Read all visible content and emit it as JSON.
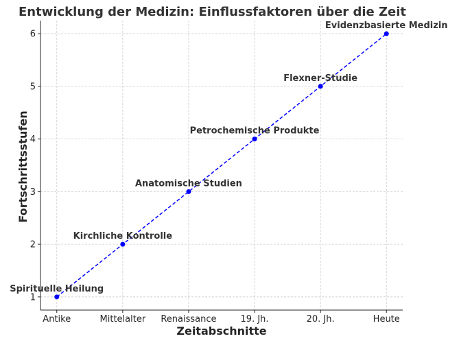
{
  "chart_data": {
    "type": "line",
    "title": "Entwicklung der Medizin: Einflussfaktoren über die Zeit",
    "xlabel": "Zeitabschnitte",
    "ylabel": "Fortschrittsstufen",
    "categories": [
      "Antike",
      "Mittelalter",
      "Renaissance",
      "19. Jh.",
      "20. Jh.",
      "Heute"
    ],
    "values": [
      1,
      2,
      3,
      4,
      5,
      6
    ],
    "annotations": [
      "Spirituelle Heilung",
      "Kirchliche Kontrolle",
      "Anatomische Studien",
      "Petrochemische Produkte",
      "Flexner-Studie",
      "Evidenzbasierte Medizin"
    ],
    "ylim": [
      0.75,
      6.25
    ],
    "yticks": [
      1,
      2,
      3,
      4,
      5,
      6
    ],
    "grid": true,
    "line_color": "#0000ff",
    "line_style": "dashed",
    "marker": "circle"
  }
}
